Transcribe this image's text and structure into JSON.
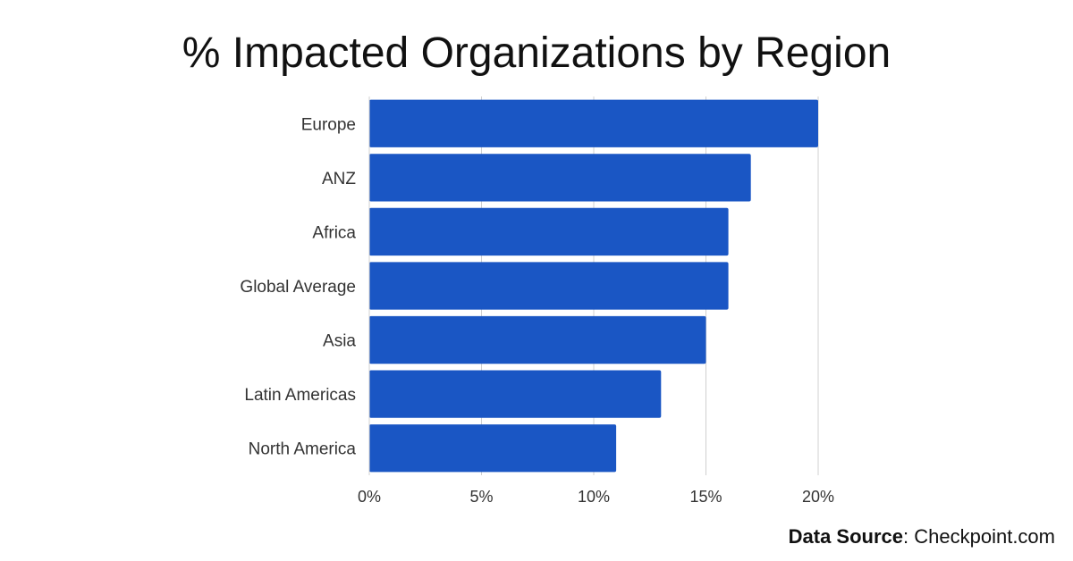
{
  "chart_data": {
    "type": "bar",
    "orientation": "horizontal",
    "title": "% Impacted Organizations by Region",
    "categories": [
      "Europe",
      "ANZ",
      "Africa",
      "Global Average",
      "Asia",
      "Latin Americas",
      "North America"
    ],
    "values": [
      20,
      17,
      16,
      16,
      15,
      13,
      11
    ],
    "xlabel": "",
    "ylabel": "",
    "xlim": [
      0,
      20
    ],
    "x_ticks": [
      0,
      5,
      10,
      15,
      20
    ],
    "x_tick_labels": [
      "0%",
      "5%",
      "10%",
      "15%",
      "20%"
    ],
    "grid": "vertical",
    "bar_color": "#1a56c4"
  },
  "source": {
    "label": "Data Source",
    "value": "Checkpoint.com"
  }
}
